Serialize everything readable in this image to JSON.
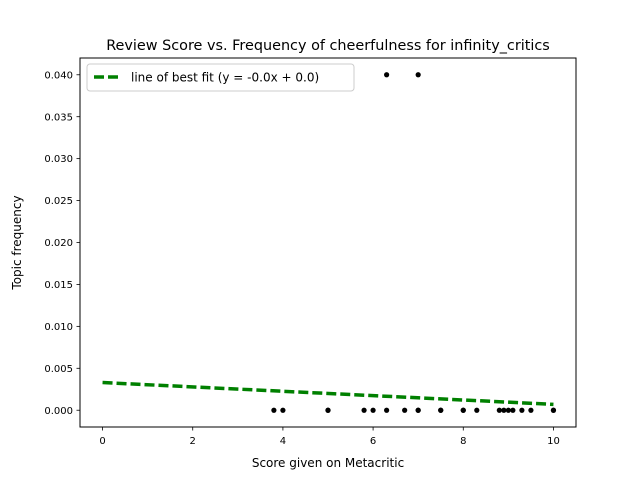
{
  "chart_data": {
    "type": "scatter",
    "title": "Review Score vs. Frequency of cheerfulness for infinity_critics",
    "xlabel": "Score given on Metacritic",
    "ylabel": "Topic frequency",
    "xlim": [
      -0.5,
      10.5
    ],
    "ylim": [
      -0.002,
      0.042
    ],
    "xticks": [
      0,
      2,
      4,
      6,
      8,
      10
    ],
    "xtick_labels": [
      "0",
      "2",
      "4",
      "6",
      "8",
      "10"
    ],
    "yticks": [
      0.0,
      0.005,
      0.01,
      0.015,
      0.02,
      0.025,
      0.03,
      0.035,
      0.04
    ],
    "ytick_labels": [
      "0.000",
      "0.005",
      "0.010",
      "0.015",
      "0.020",
      "0.025",
      "0.030",
      "0.035",
      "0.040"
    ],
    "grid": false,
    "legend_position": "top-left",
    "points": {
      "x": [
        3.8,
        4.0,
        5.0,
        5.0,
        5.8,
        6.0,
        6.3,
        6.3,
        6.7,
        7.0,
        7.0,
        7.0,
        7.5,
        7.5,
        8.0,
        8.0,
        8.3,
        8.8,
        8.9,
        9.0,
        9.1,
        9.3,
        9.5,
        10.0,
        10.0
      ],
      "y": [
        0.0,
        0.0,
        0.0,
        0.0,
        0.0,
        0.0,
        0.04,
        0.0,
        0.0,
        0.04,
        0.0,
        0.0,
        0.0,
        0.0,
        0.0,
        0.0,
        0.0,
        0.0,
        0.0,
        0.0,
        0.0,
        0.0,
        0.0,
        0.0,
        0.0
      ],
      "color": "#000000"
    },
    "fit_line": {
      "name": "line of best fit (y = -0.0x + 0.0)",
      "x": [
        0,
        10
      ],
      "y": [
        0.0033,
        0.0007
      ],
      "color": "#008000",
      "style": "dashed"
    }
  }
}
